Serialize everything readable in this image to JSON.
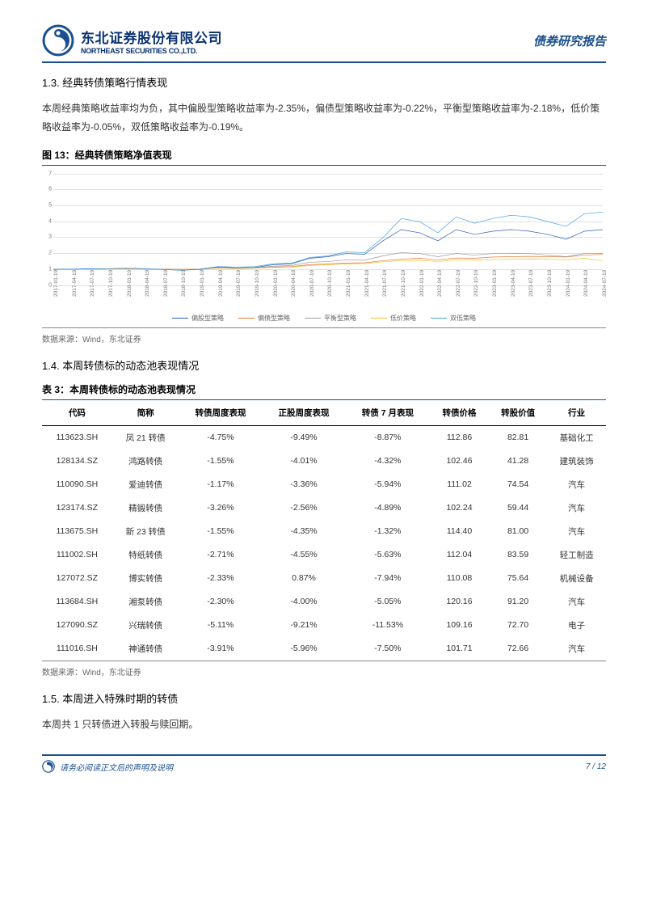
{
  "header": {
    "company_cn": "东北证券股份有限公司",
    "company_en": "NORTHEAST SECURITIES CO.,LTD.",
    "doc_type": "债券研究报告",
    "logo_color": "#1b5090"
  },
  "section_1_3": {
    "heading": "1.3.  经典转债策略行情表现",
    "body": "本周经典策略收益率均为负，其中偏股型策略收益率为-2.35%，偏债型策略收益率为-0.22%，平衡型策略收益率为-2.18%，低价策略收益率为-0.05%，双低策略收益率为-0.19%。"
  },
  "figure_13": {
    "caption": "图 13：经典转债策略净值表现",
    "source": "数据来源：Wind，东北证券",
    "type": "line",
    "ylim": [
      0,
      7
    ],
    "ytick_step": 1,
    "yticks": [
      "0",
      "1",
      "2",
      "3",
      "4",
      "5",
      "6",
      "7"
    ],
    "xlabels": [
      "2017-01-19",
      "2017-04-19",
      "2017-07-19",
      "2017-10-19",
      "2018-01-19",
      "2018-04-19",
      "2018-07-19",
      "2018-10-19",
      "2019-01-19",
      "2019-04-19",
      "2019-07-19",
      "2019-10-19",
      "2020-01-19",
      "2020-04-19",
      "2020-07-19",
      "2020-10-19",
      "2021-01-19",
      "2021-04-19",
      "2021-07-19",
      "2021-10-19",
      "2022-01-19",
      "2022-04-19",
      "2022-07-19",
      "2022-10-19",
      "2023-01-19",
      "2023-04-19",
      "2023-07-19",
      "2023-10-19",
      "2024-01-19",
      "2024-04-19",
      "2024-07-19"
    ],
    "grid_color": "#e0e0e0",
    "background_color": "#ffffff",
    "legend": [
      {
        "label": "偏股型策略",
        "color": "#2d5fb3"
      },
      {
        "label": "偏债型策略",
        "color": "#e67a33"
      },
      {
        "label": "平衡型策略",
        "color": "#9a9a9a"
      },
      {
        "label": "低价策略",
        "color": "#f0c030"
      },
      {
        "label": "双低策略",
        "color": "#4aa0e8"
      }
    ],
    "series": {
      "pianGu": [
        1.0,
        1.02,
        1.05,
        1.05,
        1.08,
        1.05,
        1.0,
        0.95,
        1.0,
        1.15,
        1.1,
        1.12,
        1.3,
        1.35,
        1.7,
        1.8,
        2.0,
        1.95,
        2.8,
        3.5,
        3.3,
        2.8,
        3.5,
        3.2,
        3.4,
        3.5,
        3.4,
        3.2,
        2.9,
        3.4,
        3.5
      ],
      "pianZhai": [
        1.0,
        1.01,
        1.02,
        1.03,
        1.04,
        1.03,
        1.02,
        1.01,
        1.03,
        1.1,
        1.08,
        1.1,
        1.15,
        1.18,
        1.3,
        1.35,
        1.4,
        1.42,
        1.55,
        1.65,
        1.7,
        1.6,
        1.72,
        1.7,
        1.78,
        1.8,
        1.82,
        1.8,
        1.78,
        1.9,
        1.95
      ],
      "pingHeng": [
        1.0,
        1.01,
        1.02,
        1.03,
        1.04,
        1.02,
        1.0,
        0.98,
        1.02,
        1.12,
        1.1,
        1.12,
        1.2,
        1.25,
        1.45,
        1.5,
        1.6,
        1.58,
        1.85,
        2.05,
        2.0,
        1.8,
        2.0,
        1.9,
        2.0,
        2.02,
        2.0,
        1.9,
        1.8,
        2.0,
        2.0
      ],
      "diJia": [
        1.0,
        1.0,
        1.01,
        1.02,
        1.03,
        1.02,
        1.01,
        1.0,
        1.02,
        1.08,
        1.06,
        1.08,
        1.12,
        1.15,
        1.25,
        1.3,
        1.35,
        1.37,
        1.48,
        1.55,
        1.58,
        1.5,
        1.6,
        1.58,
        1.62,
        1.64,
        1.66,
        1.64,
        1.6,
        1.7,
        1.55
      ],
      "shuangDi": [
        1.0,
        1.02,
        1.04,
        1.05,
        1.07,
        1.04,
        1.0,
        0.96,
        1.02,
        1.18,
        1.15,
        1.18,
        1.35,
        1.4,
        1.75,
        1.85,
        2.1,
        2.05,
        3.0,
        4.2,
        4.0,
        3.3,
        4.3,
        3.9,
        4.2,
        4.4,
        4.3,
        4.0,
        3.7,
        4.5,
        4.6
      ]
    }
  },
  "section_1_4": {
    "heading": "1.4.  本周转债标的动态池表现情况"
  },
  "table_3": {
    "caption": "表 3：本周转债标的动态池表现情况",
    "source": "数据来源：Wind，东北证券",
    "columns": [
      "代码",
      "简称",
      "转债周度表现",
      "正股周度表现",
      "转债 7 月表现",
      "转债价格",
      "转股价值",
      "行业"
    ],
    "rows": [
      [
        "113623.SH",
        "凤 21 转债",
        "-4.75%",
        "-9.49%",
        "-8.87%",
        "112.86",
        "82.81",
        "基础化工"
      ],
      [
        "128134.SZ",
        "鸿路转债",
        "-1.55%",
        "-4.01%",
        "-4.32%",
        "102.46",
        "41.28",
        "建筑装饰"
      ],
      [
        "110090.SH",
        "爱迪转债",
        "-1.17%",
        "-3.36%",
        "-5.94%",
        "111.02",
        "74.54",
        "汽车"
      ],
      [
        "123174.SZ",
        "精锻转债",
        "-3.26%",
        "-2.56%",
        "-4.89%",
        "102.24",
        "59.44",
        "汽车"
      ],
      [
        "113675.SH",
        "新 23 转债",
        "-1.55%",
        "-4.35%",
        "-1.32%",
        "114.40",
        "81.00",
        "汽车"
      ],
      [
        "111002.SH",
        "特纸转债",
        "-2.71%",
        "-4.55%",
        "-5.63%",
        "112.04",
        "83.59",
        "轻工制造"
      ],
      [
        "127072.SZ",
        "博实转债",
        "-2.33%",
        "0.87%",
        "-7.94%",
        "110.08",
        "75.64",
        "机械设备"
      ],
      [
        "113684.SH",
        "湘泵转债",
        "-2.30%",
        "-4.00%",
        "-5.05%",
        "120.16",
        "91.20",
        "汽车"
      ],
      [
        "127090.SZ",
        "兴瑞转债",
        "-5.11%",
        "-9.21%",
        "-11.53%",
        "109.16",
        "72.70",
        "电子"
      ],
      [
        "111016.SH",
        "神通转债",
        "-3.91%",
        "-5.96%",
        "-7.50%",
        "101.71",
        "72.66",
        "汽车"
      ]
    ]
  },
  "section_1_5": {
    "heading": "1.5.  本周进入特殊时期的转债",
    "body": "本周共 1 只转债进入转股与赎回期。"
  },
  "footer": {
    "note": "请务必阅读正文后的声明及说明",
    "page": "7 / 12"
  }
}
